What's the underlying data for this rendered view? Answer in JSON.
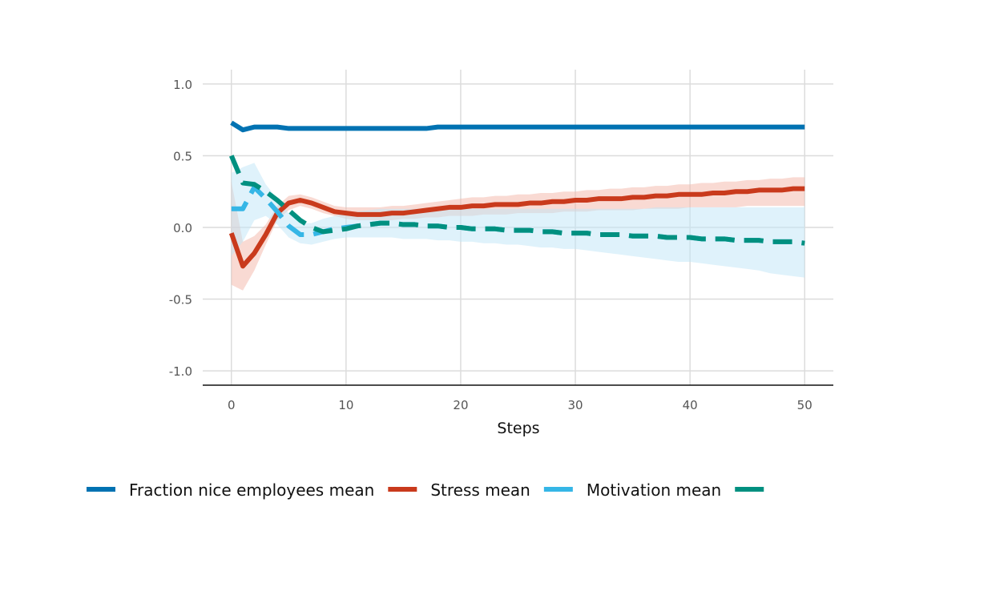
{
  "chart_data": {
    "type": "line",
    "title": "",
    "xlabel": "Steps",
    "ylabel": "",
    "xlim": [
      -2.5,
      52.5
    ],
    "ylim": [
      -1.1,
      1.1
    ],
    "x_ticks": [
      0,
      10,
      20,
      30,
      40,
      50
    ],
    "x_tick_labels": [
      "0",
      "10",
      "20",
      "30",
      "40",
      "50"
    ],
    "y_ticks": [
      1.0,
      0.5,
      0.0,
      -0.5,
      -1.0
    ],
    "y_tick_labels": [
      "1.0",
      "0.5",
      "0.0",
      "-0.5",
      "-1.0"
    ],
    "grid": true,
    "legend_position": "bottom",
    "x": [
      0,
      1,
      2,
      3,
      4,
      5,
      6,
      7,
      8,
      9,
      10,
      11,
      12,
      13,
      14,
      15,
      16,
      17,
      18,
      19,
      20,
      21,
      22,
      23,
      24,
      25,
      26,
      27,
      28,
      29,
      30,
      31,
      32,
      33,
      34,
      35,
      36,
      37,
      38,
      39,
      40,
      41,
      42,
      43,
      44,
      45,
      46,
      47,
      48,
      49,
      50
    ],
    "series": [
      {
        "name": "Fraction nice employees mean",
        "color": "#0072b2",
        "dash": "solid",
        "values": [
          0.73,
          0.68,
          0.7,
          0.7,
          0.7,
          0.69,
          0.69,
          0.69,
          0.69,
          0.69,
          0.69,
          0.69,
          0.69,
          0.69,
          0.69,
          0.69,
          0.69,
          0.69,
          0.7,
          0.7,
          0.7,
          0.7,
          0.7,
          0.7,
          0.7,
          0.7,
          0.7,
          0.7,
          0.7,
          0.7,
          0.7,
          0.7,
          0.7,
          0.7,
          0.7,
          0.7,
          0.7,
          0.7,
          0.7,
          0.7,
          0.7,
          0.7,
          0.7,
          0.7,
          0.7,
          0.7,
          0.7,
          0.7,
          0.7,
          0.7,
          0.7
        ]
      },
      {
        "name": "Stress mean",
        "color": "#c93a1c",
        "dash": "solid",
        "values": [
          -0.04,
          -0.27,
          -0.18,
          -0.05,
          0.1,
          0.17,
          0.19,
          0.17,
          0.14,
          0.11,
          0.1,
          0.09,
          0.09,
          0.09,
          0.1,
          0.1,
          0.11,
          0.12,
          0.13,
          0.14,
          0.14,
          0.15,
          0.15,
          0.16,
          0.16,
          0.16,
          0.17,
          0.17,
          0.18,
          0.18,
          0.19,
          0.19,
          0.2,
          0.2,
          0.2,
          0.21,
          0.21,
          0.22,
          0.22,
          0.23,
          0.23,
          0.23,
          0.24,
          0.24,
          0.25,
          0.25,
          0.26,
          0.26,
          0.26,
          0.27,
          0.27
        ],
        "band": {
          "color": "#f4b6a8",
          "lower": [
            -0.4,
            -0.44,
            -0.3,
            -0.12,
            0.05,
            0.12,
            0.15,
            0.13,
            0.1,
            0.08,
            0.06,
            0.05,
            0.05,
            0.05,
            0.05,
            0.06,
            0.06,
            0.07,
            0.07,
            0.08,
            0.08,
            0.08,
            0.09,
            0.09,
            0.09,
            0.1,
            0.1,
            0.1,
            0.1,
            0.11,
            0.11,
            0.11,
            0.12,
            0.12,
            0.12,
            0.12,
            0.13,
            0.13,
            0.13,
            0.13,
            0.14,
            0.14,
            0.14,
            0.14,
            0.14,
            0.15,
            0.15,
            0.15,
            0.15,
            0.15,
            0.15
          ],
          "upper": [
            0.32,
            -0.1,
            -0.06,
            0.02,
            0.15,
            0.22,
            0.23,
            0.21,
            0.18,
            0.15,
            0.14,
            0.14,
            0.14,
            0.14,
            0.15,
            0.15,
            0.16,
            0.17,
            0.18,
            0.19,
            0.2,
            0.21,
            0.21,
            0.22,
            0.22,
            0.23,
            0.23,
            0.24,
            0.24,
            0.25,
            0.25,
            0.26,
            0.26,
            0.27,
            0.27,
            0.28,
            0.28,
            0.29,
            0.29,
            0.3,
            0.3,
            0.31,
            0.31,
            0.32,
            0.32,
            0.33,
            0.33,
            0.34,
            0.34,
            0.35,
            0.35
          ]
        }
      },
      {
        "name": "Motivation mean",
        "color": "#35b6e6",
        "dash": "dashed",
        "values": [
          0.13,
          0.13,
          0.28,
          0.2,
          0.11,
          0.01,
          -0.05,
          -0.05,
          -0.03,
          -0.01,
          0.0,
          0.01,
          0.02,
          0.03,
          0.03,
          0.02,
          0.02,
          0.01,
          0.01,
          0.0,
          0.0,
          -0.01,
          -0.01,
          -0.01,
          -0.02,
          -0.02,
          -0.02,
          -0.03,
          -0.03,
          -0.04,
          -0.04,
          -0.04,
          -0.05,
          -0.05,
          -0.05,
          -0.06,
          -0.06,
          -0.06,
          -0.07,
          -0.07,
          -0.07,
          -0.08,
          -0.08,
          -0.08,
          -0.09,
          -0.09,
          -0.09,
          -0.1,
          -0.1,
          -0.1,
          -0.11
        ],
        "band": {
          "color": "#bfe6f7",
          "lower": [
            -0.2,
            -0.1,
            0.05,
            0.08,
            0.02,
            -0.07,
            -0.11,
            -0.12,
            -0.1,
            -0.08,
            -0.07,
            -0.07,
            -0.07,
            -0.07,
            -0.07,
            -0.08,
            -0.08,
            -0.08,
            -0.09,
            -0.09,
            -0.1,
            -0.1,
            -0.11,
            -0.11,
            -0.12,
            -0.12,
            -0.13,
            -0.14,
            -0.14,
            -0.15,
            -0.15,
            -0.16,
            -0.17,
            -0.18,
            -0.19,
            -0.2,
            -0.21,
            -0.22,
            -0.23,
            -0.24,
            -0.24,
            -0.25,
            -0.26,
            -0.27,
            -0.28,
            -0.29,
            -0.3,
            -0.32,
            -0.33,
            -0.34,
            -0.35
          ],
          "upper": [
            0.38,
            0.42,
            0.45,
            0.3,
            0.2,
            0.1,
            0.03,
            0.03,
            0.06,
            0.08,
            0.1,
            0.11,
            0.12,
            0.13,
            0.13,
            0.13,
            0.13,
            0.13,
            0.13,
            0.13,
            0.13,
            0.13,
            0.13,
            0.13,
            0.13,
            0.13,
            0.13,
            0.13,
            0.13,
            0.13,
            0.13,
            0.13,
            0.13,
            0.13,
            0.13,
            0.13,
            0.13,
            0.14,
            0.14,
            0.14,
            0.14,
            0.14,
            0.14,
            0.14,
            0.14,
            0.14,
            0.14,
            0.14,
            0.14,
            0.14,
            0.14
          ]
        }
      },
      {
        "name": "",
        "color": "#009080",
        "dash": "dashed",
        "values": [
          0.5,
          0.31,
          0.3,
          0.25,
          0.19,
          0.12,
          0.05,
          0.0,
          -0.03,
          -0.02,
          -0.01,
          0.01,
          0.02,
          0.03,
          0.03,
          0.02,
          0.02,
          0.01,
          0.01,
          0.0,
          0.0,
          -0.01,
          -0.01,
          -0.01,
          -0.02,
          -0.02,
          -0.02,
          -0.03,
          -0.03,
          -0.04,
          -0.04,
          -0.04,
          -0.05,
          -0.05,
          -0.05,
          -0.06,
          -0.06,
          -0.06,
          -0.07,
          -0.07,
          -0.07,
          -0.08,
          -0.08,
          -0.08,
          -0.09,
          -0.09,
          -0.09,
          -0.1,
          -0.1,
          -0.1,
          -0.11
        ]
      }
    ]
  }
}
